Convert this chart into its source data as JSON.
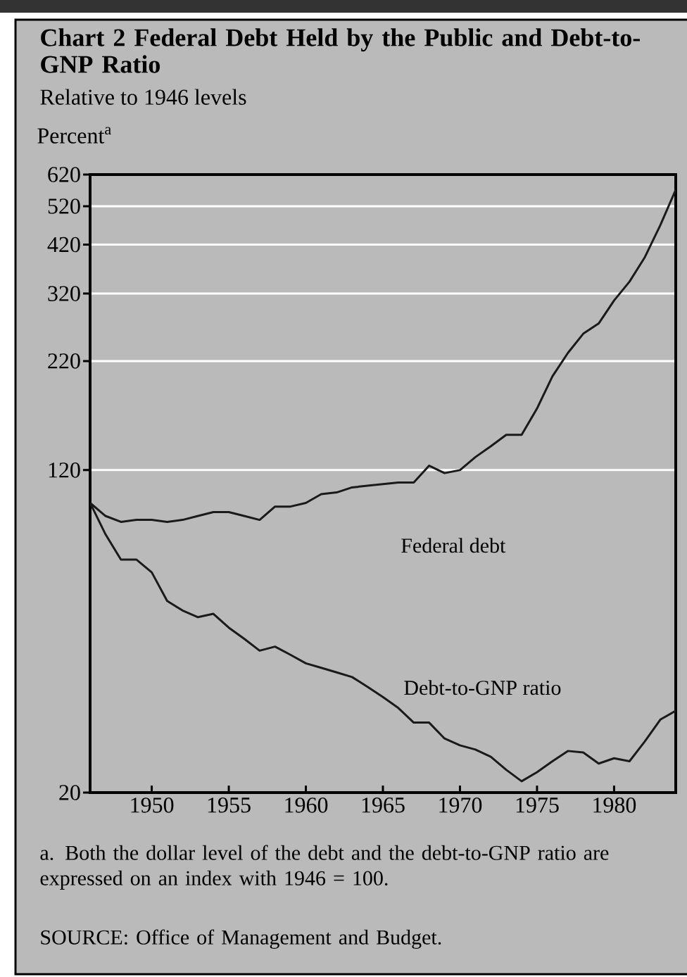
{
  "chart_data": {
    "type": "line",
    "title": "Chart 2    Federal Debt Held by the Public and Debt-to-GNP Ratio",
    "subtitle": "Relative to 1946 levels",
    "ylabel": "Percent$^{a}$",
    "x": [
      1946,
      1947,
      1948,
      1949,
      1950,
      1951,
      1952,
      1953,
      1954,
      1955,
      1956,
      1957,
      1958,
      1959,
      1960,
      1961,
      1962,
      1963,
      1964,
      1965,
      1966,
      1967,
      1968,
      1969,
      1970,
      1971,
      1972,
      1973,
      1974,
      1975,
      1976,
      1977,
      1978,
      1979,
      1980,
      1981,
      1982,
      1983,
      1984
    ],
    "series": [
      {
        "name": "Federal debt",
        "color": "#1a1a1a",
        "values": [
          100,
          93,
          90,
          91,
          91,
          90,
          91,
          93,
          95,
          95,
          93,
          91,
          98,
          98,
          100,
          105,
          106,
          109,
          110,
          111,
          112,
          112,
          123,
          118,
          120,
          129,
          137,
          146,
          146,
          169,
          202,
          230,
          256,
          271,
          308,
          342,
          392,
          468,
          570
        ]
      },
      {
        "name": "Debt-to-GNP ratio",
        "color": "#1a1a1a",
        "values": [
          100,
          84,
          73,
          73,
          68,
          58,
          55,
          53,
          54,
          50,
          47,
          44,
          45,
          43,
          41,
          40,
          39,
          38,
          36,
          34,
          32,
          29.5,
          29.5,
          27,
          26,
          25.4,
          24.4,
          22.7,
          21.3,
          22.4,
          23.8,
          25.2,
          25,
          23.5,
          24.2,
          23.8,
          26.6,
          30,
          31.5
        ]
      }
    ],
    "xlim": [
      1946,
      1984
    ],
    "ylim": [
      20,
      620
    ],
    "log": "y",
    "xticks": [
      1950,
      1955,
      1960,
      1965,
      1970,
      1975,
      1980
    ],
    "yticks": [
      20,
      120,
      220,
      320,
      420,
      520,
      620
    ],
    "grid": "y",
    "legend": false,
    "line_style": "solid",
    "annotations": [
      "a.  Both the dollar level of the debt and the debt-to-GNP ratio are expressed on an index with 1946 = 100.",
      "SOURCE: Office of Management and Budget."
    ]
  }
}
